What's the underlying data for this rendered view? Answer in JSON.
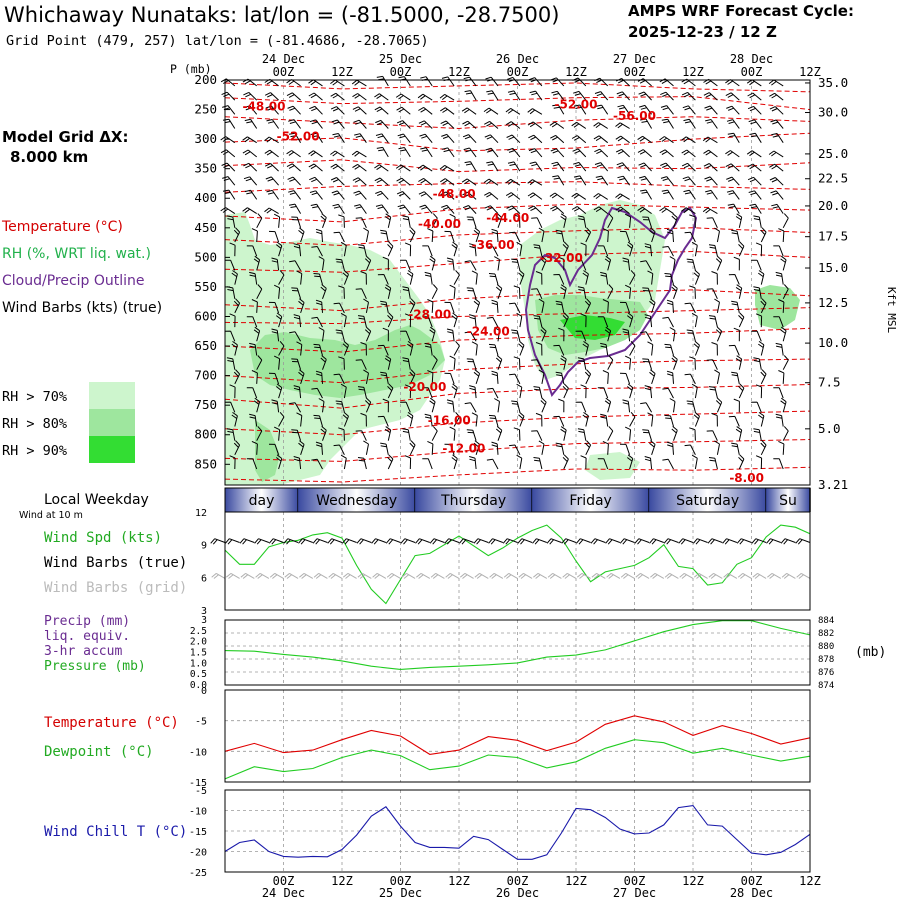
{
  "header": {
    "title": "Whichaway Nunataks:  lat/lon = (-81.5000, -28.7500)",
    "grid_point": "Grid Point (479, 257) lat/lon = (-81.4686, -28.7065)",
    "cycle_label": "AMPS WRF Forecast Cycle:",
    "cycle_value": "2025-12-23 / 12  Z"
  },
  "left_panel": {
    "model_grid_label": "Model Grid ΔX:",
    "model_grid_value": "8.000 km",
    "legend": [
      {
        "text": "Temperature (°C)",
        "color": "#d40000"
      },
      {
        "text": "RH (%, WRT liq. wat.)",
        "color": "#22b14c"
      },
      {
        "text": "Cloud/Precip Outline",
        "color": "#6a2c91"
      },
      {
        "text": "Wind Barbs (kts) (true)",
        "color": "#000000"
      }
    ],
    "rh_legend": [
      {
        "text": "RH > 70%",
        "color": "#cdf5cd"
      },
      {
        "text": "RH > 80%",
        "color": "#9ee69e"
      },
      {
        "text": "RH > 90%",
        "color": "#33dd33"
      }
    ]
  },
  "time_axis": {
    "top_dates": [
      "24 Dec",
      "25 Dec",
      "26 Dec",
      "27 Dec",
      "28 Dec"
    ],
    "hour_labels": [
      "00Z",
      "12Z",
      "00Z",
      "12Z",
      "00Z",
      "12Z",
      "00Z",
      "12Z",
      "00Z",
      "12Z"
    ],
    "pressure_label": "P (mb)"
  },
  "colors": {
    "temperature": "#e00000",
    "rh70": "#cdf5cd",
    "rh80": "#9ee69e",
    "rh90": "#33dd33",
    "cloud": "#6a2c91",
    "wind_speed": "#22cc22",
    "pressure": "#22cc22",
    "wind_chill": "#1a1aaa",
    "dewpoint": "#22cc22",
    "grid": "#9a9a9a"
  },
  "weekday_bar": {
    "label": "Local Weekday",
    "sub_label": "Wind at 10 m",
    "days": [
      "day",
      "Wednesday",
      "Thursday",
      "Friday",
      "Saturday",
      "Su"
    ]
  },
  "panels": {
    "wind": {
      "labels": [
        {
          "text": "Wind Spd (kts)",
          "color": "#22aa22"
        },
        {
          "text": "Wind Barbs (true)",
          "color": "#000000"
        },
        {
          "text": "Wind Barbs (grid)",
          "color": "#bbbbbb"
        }
      ]
    },
    "precip": {
      "labels": [
        {
          "text": "Precip (mm)",
          "color": "#6a2c91"
        },
        {
          "text": "liq. equiv.",
          "color": "#6a2c91"
        },
        {
          "text": "3-hr accum",
          "color": "#6a2c91"
        },
        {
          "text": "Pressure (mb)",
          "color": "#22aa22"
        }
      ],
      "right_unit": "(mb)"
    },
    "temp": {
      "labels": [
        {
          "text": "Temperature (°C)",
          "color": "#d40000"
        },
        {
          "text": "Dewpoint (°C)",
          "color": "#22aa22"
        }
      ]
    },
    "chill": {
      "labels": [
        {
          "text": "Wind Chill T (°C)",
          "color": "#1a1aaa"
        }
      ]
    }
  },
  "chart_data": [
    {
      "type": "heatmap",
      "name": "time-height cross section",
      "x_range_hours": [
        -12,
        108
      ],
      "ylabel": "P (mb)",
      "y_ticks": [
        200,
        250,
        300,
        350,
        400,
        450,
        500,
        550,
        600,
        650,
        700,
        750,
        800,
        850
      ],
      "ylim": [
        200,
        885
      ],
      "y2label": "Kft MSL",
      "y2_ticks": [
        {
          "label": "35.0",
          "p": 205
        },
        {
          "label": "30.0",
          "p": 255
        },
        {
          "label": "25.0",
          "p": 325
        },
        {
          "label": "22.5",
          "p": 367
        },
        {
          "label": "20.0",
          "p": 413
        },
        {
          "label": "17.5",
          "p": 465
        },
        {
          "label": "15.0",
          "p": 518
        },
        {
          "label": "12.5",
          "p": 577
        },
        {
          "label": "10.0",
          "p": 645
        },
        {
          "label": "7.5",
          "p": 712
        },
        {
          "label": "5.0",
          "p": 790
        },
        {
          "label": "3.21",
          "p": 885
        }
      ],
      "temperature_contour_labels": [
        {
          "text": "-48.00",
          "t": -4,
          "p": 252
        },
        {
          "text": "-52.00",
          "t": 3,
          "p": 302
        },
        {
          "text": "-52.00",
          "t": 60,
          "p": 248
        },
        {
          "text": "-56.00",
          "t": 72,
          "p": 268
        },
        {
          "text": "-48.00",
          "t": 35,
          "p": 400
        },
        {
          "text": "-44.00",
          "t": 46,
          "p": 440
        },
        {
          "text": "-40.00",
          "t": 32,
          "p": 450
        },
        {
          "text": "-36.00",
          "t": 43,
          "p": 486
        },
        {
          "text": "-32.00",
          "t": 57,
          "p": 508
        },
        {
          "text": "-28.00",
          "t": 30,
          "p": 603
        },
        {
          "text": "-24.00",
          "t": 42,
          "p": 632
        },
        {
          "text": "-20.00",
          "t": 29,
          "p": 726
        },
        {
          "text": "-16.00",
          "t": 34,
          "p": 783
        },
        {
          "text": "-12.00",
          "t": 37,
          "p": 830
        },
        {
          "text": "-8.00",
          "t": 95,
          "p": 880
        }
      ]
    },
    {
      "type": "line",
      "name": "wind speed",
      "ylim": [
        3,
        12
      ],
      "y_ticks": [
        3,
        6,
        9,
        12
      ],
      "x": [
        -12,
        -9,
        -6,
        -3,
        0,
        3,
        6,
        9,
        12,
        15,
        18,
        21,
        24,
        27,
        30,
        33,
        36,
        39,
        42,
        45,
        48,
        51,
        54,
        57,
        60,
        63,
        66,
        69,
        72,
        75,
        78,
        81,
        84,
        87,
        90,
        93,
        96,
        99,
        102,
        105,
        108
      ],
      "series": [
        {
          "values": [
            8.5,
            7.2,
            7.2,
            8.8,
            9.2,
            9.4,
            9.9,
            10.1,
            9.6,
            7.1,
            4.9,
            3.6,
            5.8,
            8.0,
            8.2,
            9.0,
            9.8,
            8.9,
            8.0,
            8.7,
            9.6,
            10.3,
            10.8,
            9.6,
            7.5,
            5.6,
            6.5,
            6.8,
            7.1,
            7.8,
            9.0,
            7.0,
            6.8,
            5.3,
            5.5,
            7.2,
            7.8,
            9.7,
            10.8,
            10.6,
            10.0
          ]
        }
      ]
    },
    {
      "type": "line",
      "name": "surface pressure",
      "ylim": [
        874,
        884
      ],
      "y_ticks": [
        874,
        876,
        878,
        880,
        882,
        884
      ],
      "x": [
        -12,
        -6,
        0,
        6,
        12,
        18,
        24,
        30,
        36,
        42,
        48,
        54,
        60,
        66,
        72,
        78,
        84,
        90,
        96,
        102,
        108
      ],
      "series": [
        {
          "values": [
            879.3,
            879.2,
            878.7,
            878.3,
            877.7,
            876.9,
            876.4,
            876.7,
            876.9,
            877.1,
            877.4,
            878.3,
            878.6,
            879.4,
            880.8,
            882.2,
            883.3,
            883.9,
            883.9,
            882.7,
            881.7
          ]
        }
      ],
      "left_ticks": [
        0.0,
        0.5,
        1.0,
        1.5,
        2.0,
        2.5,
        3
      ]
    },
    {
      "type": "line",
      "name": "temperature and dewpoint",
      "ylim": [
        -15,
        0
      ],
      "y_ticks": [
        -15,
        -10,
        -5,
        0
      ],
      "x": [
        -12,
        -6,
        0,
        6,
        12,
        18,
        24,
        30,
        36,
        42,
        48,
        54,
        60,
        66,
        72,
        78,
        84,
        90,
        96,
        102,
        108
      ],
      "series": [
        {
          "name": "Temperature",
          "values": [
            -10.0,
            -8.7,
            -10.2,
            -9.8,
            -8.1,
            -6.6,
            -7.5,
            -10.5,
            -9.8,
            -7.6,
            -8.2,
            -9.9,
            -8.5,
            -5.6,
            -4.2,
            -5.2,
            -7.4,
            -5.8,
            -7.1,
            -8.8,
            -7.8
          ]
        },
        {
          "name": "Dewpoint",
          "values": [
            -14.5,
            -12.5,
            -13.3,
            -12.8,
            -11.0,
            -9.8,
            -10.7,
            -13.0,
            -12.4,
            -10.6,
            -11.0,
            -12.7,
            -11.7,
            -9.5,
            -8.1,
            -8.6,
            -10.3,
            -9.5,
            -10.6,
            -11.6,
            -10.8
          ]
        }
      ]
    },
    {
      "type": "line",
      "name": "wind chill",
      "ylim": [
        -25,
        -5
      ],
      "y_ticks": [
        -25,
        -20,
        -15,
        -10,
        -5
      ],
      "x": [
        -12,
        -9,
        -6,
        -3,
        0,
        3,
        6,
        9,
        12,
        15,
        18,
        21,
        24,
        27,
        30,
        33,
        36,
        39,
        42,
        45,
        48,
        51,
        54,
        57,
        60,
        63,
        66,
        69,
        72,
        75,
        78,
        81,
        84,
        87,
        90,
        93,
        96,
        99,
        102,
        105,
        108
      ],
      "series": [
        {
          "values": [
            -20.0,
            -17.8,
            -17.2,
            -20.0,
            -21.2,
            -21.4,
            -21.2,
            -21.3,
            -19.5,
            -16.0,
            -11.4,
            -9.1,
            -13.8,
            -17.8,
            -19.0,
            -19.0,
            -19.2,
            -16.3,
            -17.1,
            -19.5,
            -21.9,
            -21.9,
            -20.8,
            -15.5,
            -9.5,
            -9.8,
            -11.7,
            -14.5,
            -15.7,
            -15.5,
            -13.5,
            -9.3,
            -8.8,
            -13.5,
            -13.8,
            -17.1,
            -20.4,
            -20.8,
            -20.2,
            -18.3,
            -15.8
          ]
        }
      ]
    }
  ]
}
